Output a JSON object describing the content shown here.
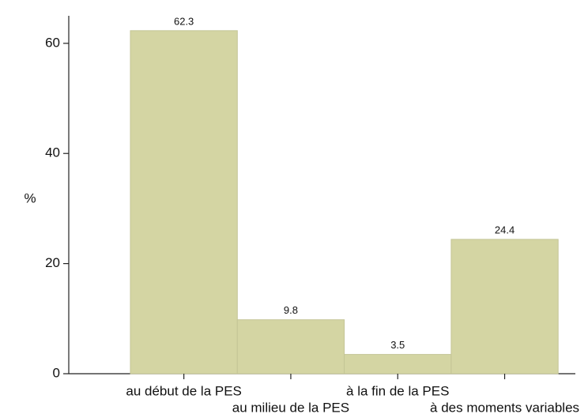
{
  "chart_data": {
    "type": "bar",
    "ylabel": "%",
    "categories": [
      "au début de la PES",
      "au milieu de la PES",
      "à la fin de la PES",
      "à des moments variables"
    ],
    "values": [
      62.3,
      9.8,
      3.5,
      24.4
    ],
    "color": "#d4d5a3",
    "ylim": [
      0,
      65
    ],
    "yticks": [
      0,
      20,
      40,
      60
    ],
    "grid": false
  }
}
